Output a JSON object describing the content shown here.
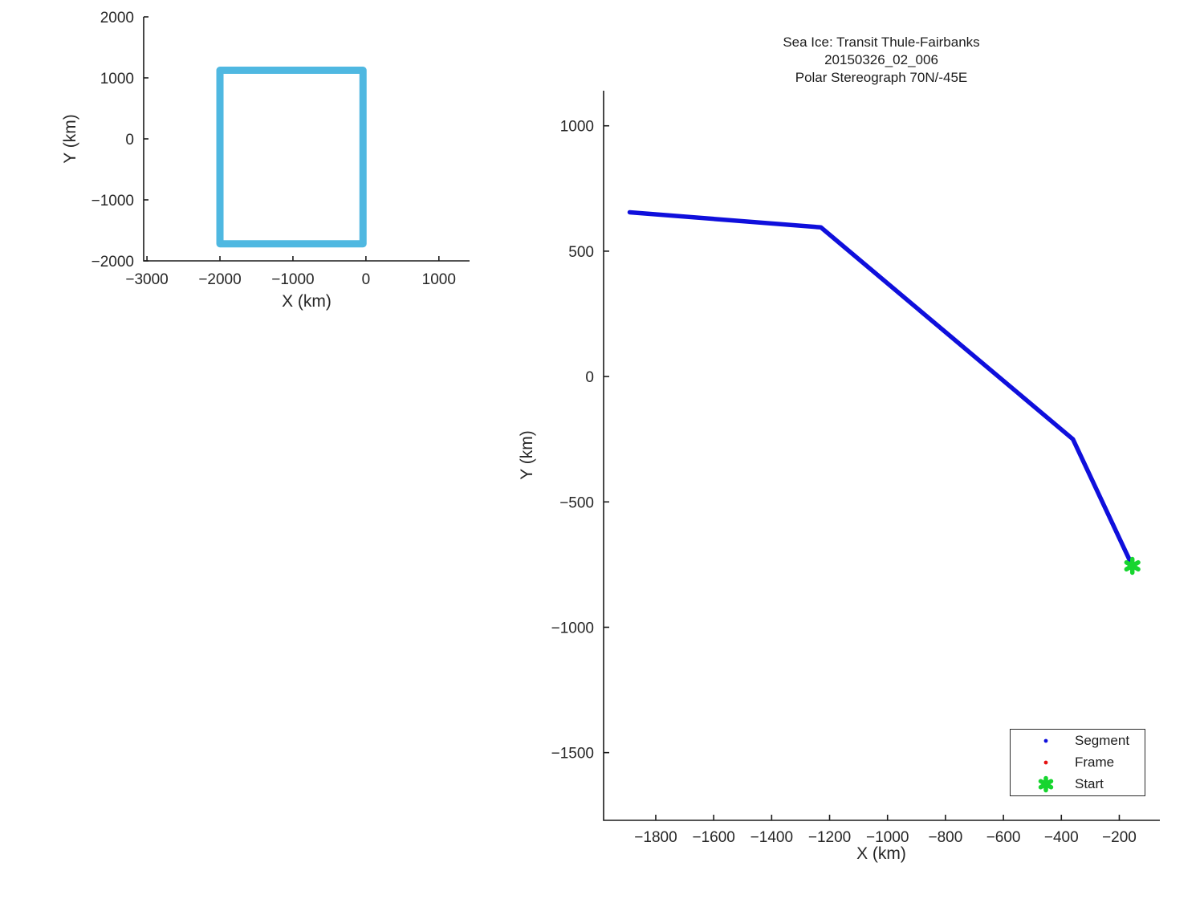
{
  "figure": {
    "background": "#FFFFFF",
    "axis_color": "#1C1C1C",
    "text_color": "#262626"
  },
  "chart_data": [
    {
      "id": "overview",
      "type": "line",
      "title": "",
      "xlabel": "X (km)",
      "ylabel": "Y (km)",
      "xlim": [
        -3045,
        1420
      ],
      "ylim": [
        -2000,
        2000
      ],
      "x_ticks": [
        -3000,
        -2000,
        -1000,
        0,
        1000
      ],
      "y_ticks": [
        -2000,
        -1000,
        0,
        1000,
        2000
      ],
      "grid": false,
      "legend": null,
      "series": [
        {
          "name": "coverage-box",
          "type": "line",
          "color": "#4FB8E1",
          "line_width": 9,
          "points": [
            [
              -2000,
              1125
            ],
            [
              -40,
              1125
            ],
            [
              -40,
              -1720
            ],
            [
              -2000,
              -1720
            ],
            [
              -2000,
              1125
            ]
          ]
        }
      ]
    },
    {
      "id": "transit",
      "type": "line",
      "title_lines": [
        "Sea Ice: Transit Thule-Fairbanks",
        "20150326_02_006",
        "Polar Stereograph 70N/-45E"
      ],
      "xlabel": "X (km)",
      "ylabel": "Y (km)",
      "xlim": [
        -1980,
        -60
      ],
      "ylim": [
        -1770,
        1140
      ],
      "x_ticks": [
        -1800,
        -1600,
        -1400,
        -1200,
        -1000,
        -800,
        -600,
        -400,
        -200
      ],
      "y_ticks": [
        -1500,
        -1000,
        -500,
        0,
        500,
        1000
      ],
      "grid": false,
      "series": [
        {
          "name": "Segment",
          "type": "line",
          "color": "#0F0FDC",
          "line_width": 5.5,
          "points": [
            [
              -1890,
              655
            ],
            [
              -1230,
              595
            ],
            [
              -360,
              -250
            ],
            [
              -155,
              -755
            ]
          ]
        },
        {
          "name": "Start",
          "type": "marker",
          "marker": "star",
          "color": "#17D52F",
          "size": 17,
          "points": [
            [
              -155,
              -755
            ]
          ]
        }
      ],
      "legend": {
        "position": "bottom-right",
        "items": [
          {
            "label": "Segment",
            "marker": "dot",
            "color": "#0F0FDC"
          },
          {
            "label": "Frame",
            "marker": "dot",
            "color": "#E51212"
          },
          {
            "label": "Start",
            "marker": "star",
            "color": "#17D52F"
          }
        ]
      }
    }
  ]
}
